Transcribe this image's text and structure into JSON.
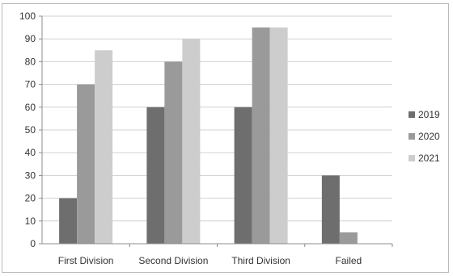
{
  "chart_data": {
    "type": "bar",
    "categories": [
      "First Division",
      "Second Division",
      "Third Division",
      "Failed"
    ],
    "series": [
      {
        "name": "2019",
        "values": [
          20,
          60,
          60,
          30
        ],
        "color": "#6e6e6e"
      },
      {
        "name": "2020",
        "values": [
          70,
          80,
          95,
          5
        ],
        "color": "#9a9a9a"
      },
      {
        "name": "2021",
        "values": [
          85,
          90,
          95,
          0
        ],
        "color": "#cdcdcd"
      }
    ],
    "title": "",
    "xlabel": "",
    "ylabel": "",
    "ylim": [
      0,
      100
    ],
    "yticks": [
      0,
      10,
      20,
      30,
      40,
      50,
      60,
      70,
      80,
      90,
      100
    ],
    "grid": true,
    "legend": "right"
  }
}
